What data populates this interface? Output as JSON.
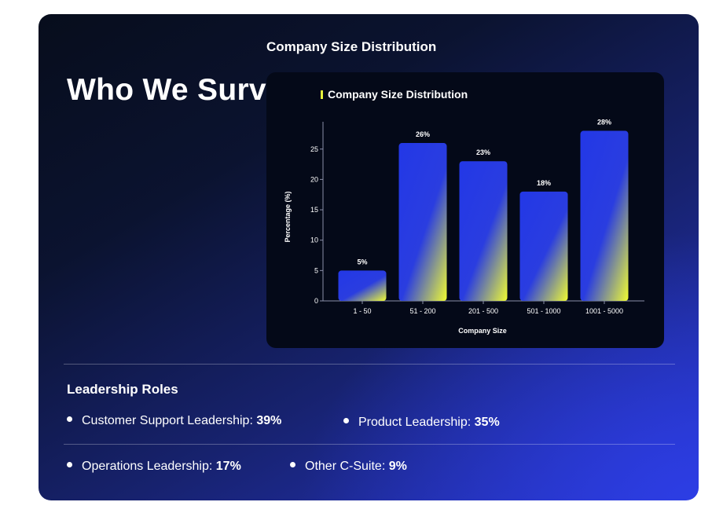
{
  "section": {
    "heading": "Who We Surveyed",
    "chart_heading": "Company Size Distribution"
  },
  "chart_data": {
    "type": "bar",
    "title": "Company Size Distribution",
    "xlabel": "Company Size",
    "ylabel": "Percentage (%)",
    "categories": [
      "1 - 50",
      "51 - 200",
      "201 - 500",
      "501 - 1000",
      "1001 - 5000"
    ],
    "values": [
      5,
      26,
      23,
      18,
      28
    ],
    "data_labels": [
      "5%",
      "26%",
      "23%",
      "18%",
      "28%"
    ],
    "yticks": [
      0,
      5,
      10,
      15,
      20,
      25
    ],
    "ylim": [
      0,
      30
    ],
    "grid": false,
    "legend_marker_color": "#e6f23a",
    "bar_gradient": [
      "#2338e6",
      "#e6f23a"
    ]
  },
  "leadership": {
    "title": "Leadership Roles",
    "roles": [
      {
        "label": "Customer Support Leadership:",
        "value": "39%"
      },
      {
        "label": "Product Leadership:",
        "value": "35%"
      },
      {
        "label": "Operations Leadership:",
        "value": "17%"
      },
      {
        "label": "Other C-Suite:",
        "value": "9%"
      }
    ]
  }
}
